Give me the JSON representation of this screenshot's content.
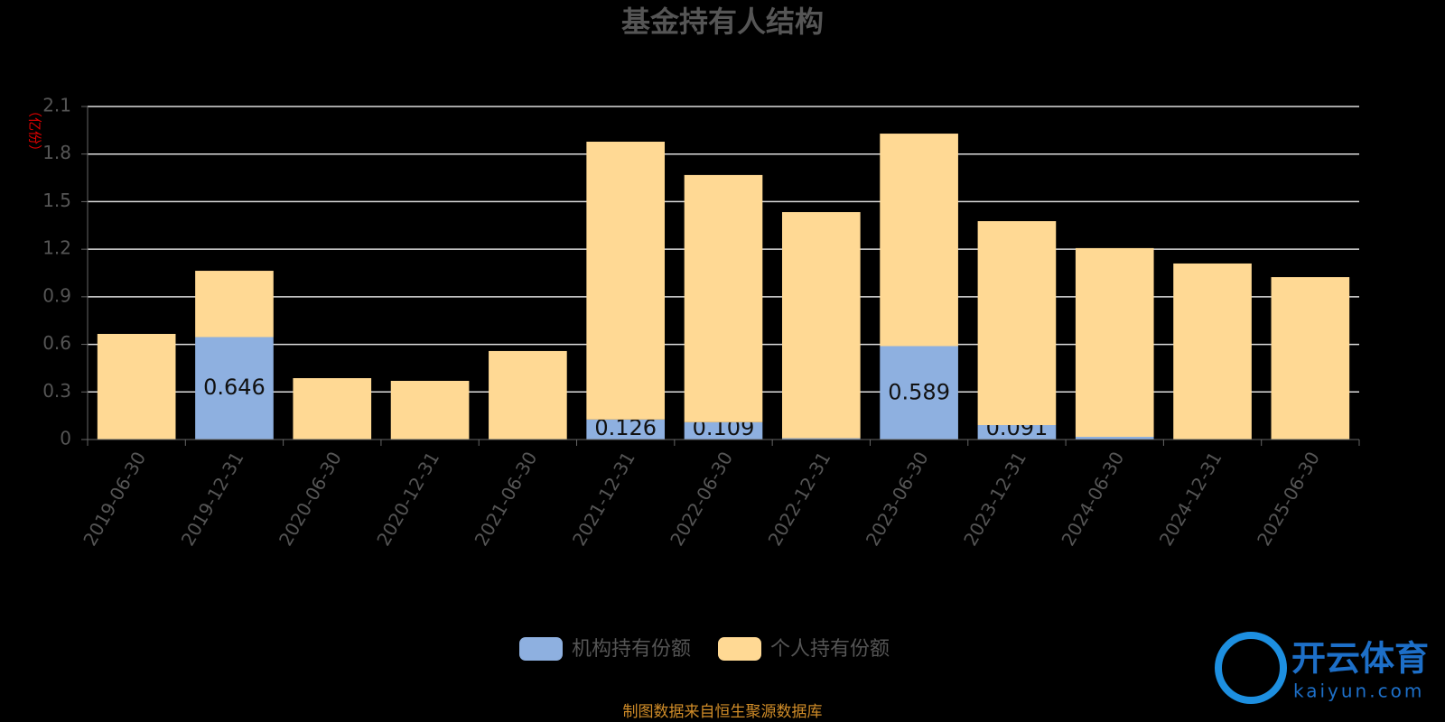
{
  "chart_data": {
    "type": "stacked_bar",
    "title": "基金持有人结构",
    "y_label": "（亿份）",
    "categories": [
      "2019-06-30",
      "2019-12-31",
      "2020-06-30",
      "2020-12-31",
      "2021-06-30",
      "2021-12-31",
      "2022-06-30",
      "2022-12-31",
      "2023-06-30",
      "2023-12-31",
      "2024-06-30",
      "2024-12-31",
      "2025-06-30"
    ],
    "series": [
      {
        "name": "机构持有份额",
        "color": "#8eb0e0",
        "values": [
          0,
          0.646,
          0,
          0,
          0,
          0.126,
          0.109,
          0.008,
          0.589,
          0.091,
          0.017,
          0.001,
          0.001
        ]
      },
      {
        "name": "个人持有份额",
        "color": "#ffd994",
        "values": [
          0.666,
          0.418,
          0.387,
          0.37,
          0.558,
          1.752,
          1.559,
          1.426,
          1.34,
          1.286,
          1.19,
          1.109,
          1.023
        ]
      }
    ],
    "ylim": [
      0,
      2.1
    ],
    "yticks": [
      0,
      0.3,
      0.6,
      0.9,
      1.2,
      1.5,
      1.8,
      2.1
    ],
    "grid": true,
    "source": "制图数据来自恒生聚源数据库",
    "watermark": {
      "brand": "开云体育",
      "site": "kaiyun.com"
    }
  }
}
